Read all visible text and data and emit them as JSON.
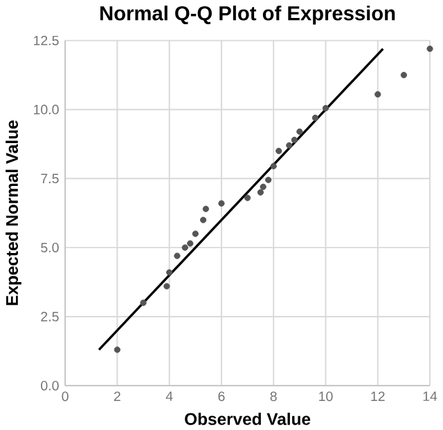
{
  "chart_data": {
    "type": "scatter",
    "title": "Normal Q-Q Plot of Expression",
    "xlabel": "Observed Value",
    "ylabel": "Expected Normal Value",
    "xlim": [
      0,
      14
    ],
    "ylim": [
      0,
      12.5
    ],
    "xticks": [
      0,
      2,
      4,
      6,
      8,
      10,
      12,
      14
    ],
    "yticks": [
      {
        "value": 0,
        "label": "0.0"
      },
      {
        "value": 2.5,
        "label": "2.5"
      },
      {
        "value": 5,
        "label": "5.0"
      },
      {
        "value": 7.5,
        "label": "7.5"
      },
      {
        "value": 10,
        "label": "10.0"
      },
      {
        "value": 12.5,
        "label": "12.5"
      }
    ],
    "grid": true,
    "series": [
      {
        "marker": "circle",
        "color": "#555555",
        "x": [
          2.0,
          3.0,
          3.9,
          4.0,
          4.3,
          4.6,
          4.8,
          5.0,
          5.3,
          5.4,
          6.0,
          7.0,
          7.5,
          7.6,
          7.8,
          8.0,
          8.2,
          8.6,
          8.8,
          9.0,
          9.6,
          10.0,
          12.0,
          13.0,
          14.0
        ],
        "values": [
          1.3,
          3.0,
          3.6,
          4.1,
          4.7,
          5.0,
          5.15,
          5.5,
          6.0,
          6.4,
          6.6,
          6.8,
          7.0,
          7.2,
          7.45,
          7.95,
          8.5,
          8.7,
          8.9,
          9.2,
          9.7,
          10.05,
          10.55,
          11.25,
          12.2
        ]
      },
      {
        "type": "line",
        "marker": "none",
        "color": "#000000",
        "x": [
          1.3,
          12.2
        ],
        "values": [
          1.3,
          12.2
        ]
      }
    ]
  }
}
